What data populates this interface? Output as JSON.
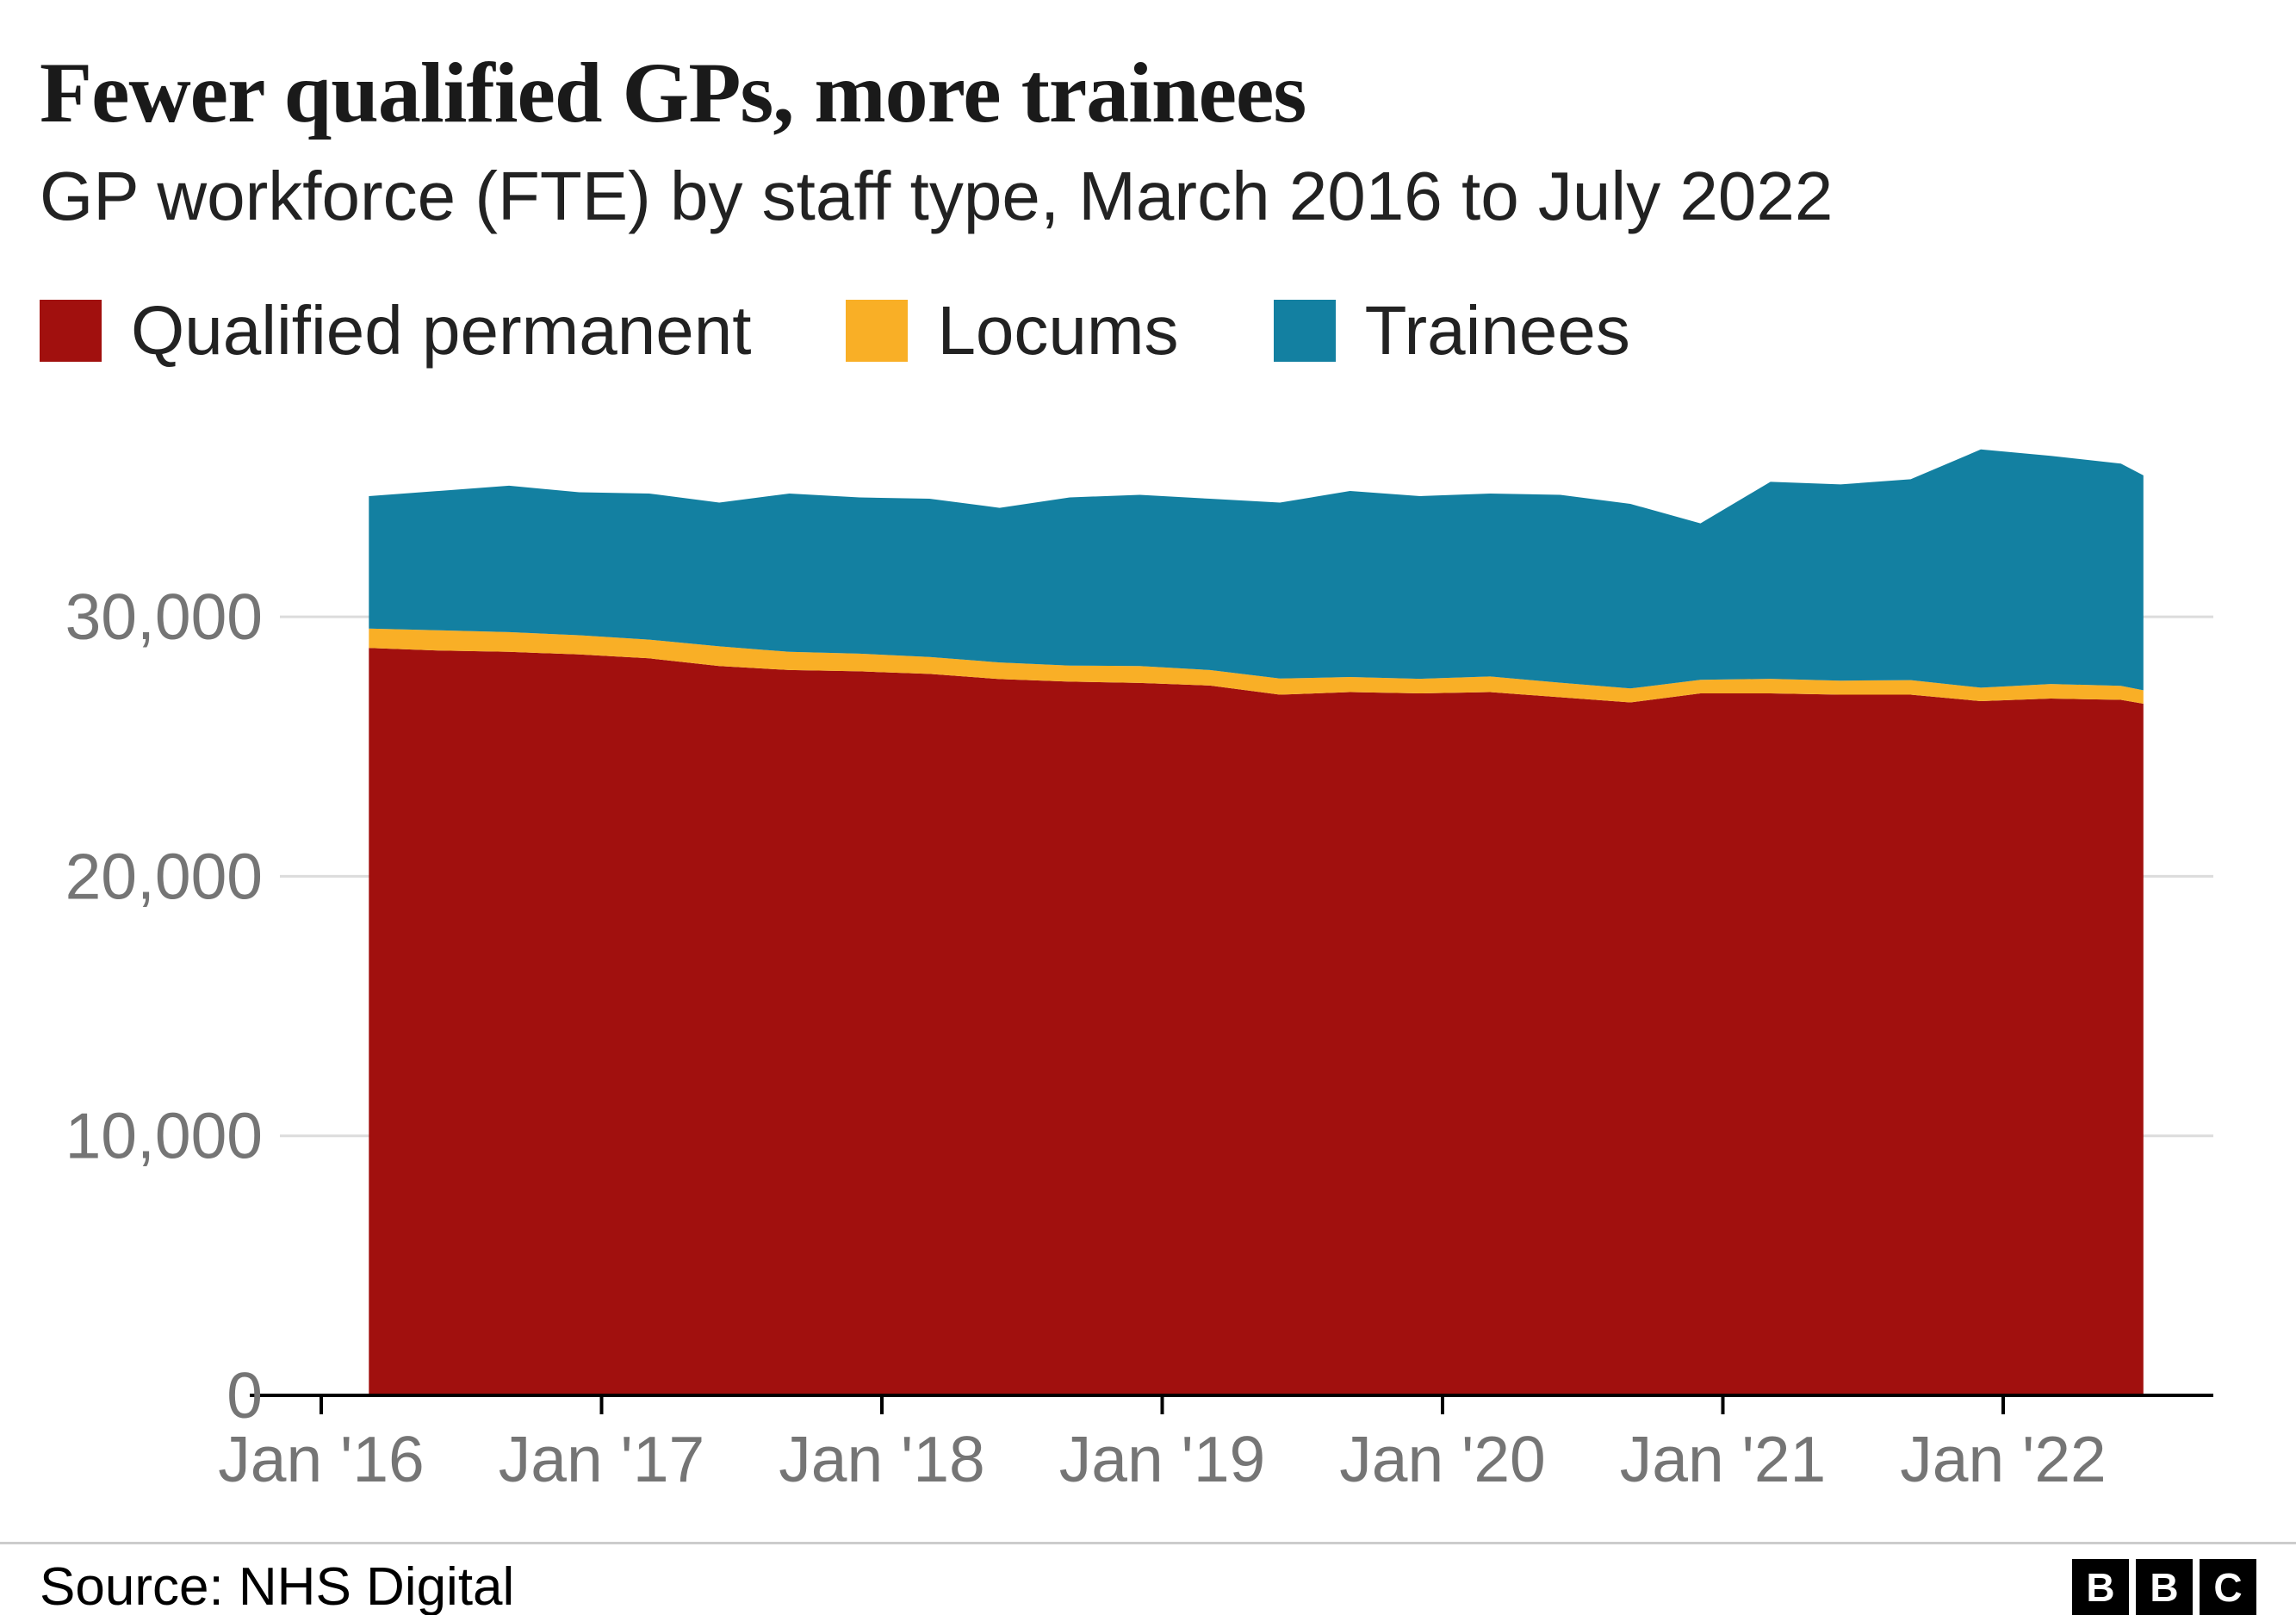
{
  "header": {
    "title": "Fewer qualified GPs, more trainees",
    "subtitle": "GP workforce (FTE) by staff type, March 2016 to July 2022"
  },
  "footer": {
    "source": "Source: NHS Digital",
    "logo_letters": [
      "B",
      "B",
      "C"
    ]
  },
  "chart_data": {
    "type": "area",
    "stacked": true,
    "title": "Fewer qualified GPs, more trainees",
    "subtitle": "GP workforce (FTE) by staff type, March 2016 to July 2022",
    "xlabel": "",
    "ylabel": "",
    "grid": "horizontal",
    "legend_position": "top",
    "ylim": [
      0,
      36600
    ],
    "x_range": [
      2016.17,
      2022.5
    ],
    "x_unit": "decimal_year",
    "point_labels": [
      "Mar '16",
      "Jun '16",
      "Sep '16",
      "Dec '16",
      "Mar '17",
      "Jun '17",
      "Sep '17",
      "Dec '17",
      "Mar '18",
      "Jun '18",
      "Sep '18",
      "Dec '18",
      "Mar '19",
      "Jun '19",
      "Sep '19",
      "Dec '19",
      "Mar '20",
      "Jun '20",
      "Sep '20",
      "Dec '20",
      "Mar '21",
      "Jun '21",
      "Sep '21",
      "Dec '21",
      "Mar '22",
      "Jun '22",
      "Jul '22"
    ],
    "x": [
      2016.17,
      2016.42,
      2016.67,
      2016.92,
      2017.17,
      2017.42,
      2017.67,
      2017.92,
      2018.17,
      2018.42,
      2018.67,
      2018.92,
      2019.17,
      2019.42,
      2019.67,
      2019.92,
      2020.17,
      2020.42,
      2020.67,
      2020.92,
      2021.17,
      2021.42,
      2021.67,
      2021.92,
      2022.17,
      2022.42,
      2022.5
    ],
    "series": [
      {
        "name": "Qualified permanent",
        "color": "#a1100e",
        "values": [
          28800,
          28700,
          28650,
          28550,
          28400,
          28100,
          27950,
          27900,
          27800,
          27600,
          27500,
          27450,
          27350,
          27000,
          27100,
          27050,
          27100,
          26900,
          26700,
          27050,
          27050,
          27000,
          27000,
          26750,
          26850,
          26800,
          26650
        ]
      },
      {
        "name": "Locums",
        "color": "#f9af26",
        "values": [
          750,
          780,
          760,
          740,
          720,
          760,
          700,
          680,
          650,
          640,
          620,
          650,
          600,
          620,
          580,
          560,
          600,
          560,
          540,
          520,
          560,
          540,
          560,
          520,
          560,
          540,
          520
        ]
      },
      {
        "name": "Trainees",
        "color": "#1380a1",
        "values": [
          5100,
          5370,
          5640,
          5510,
          5630,
          5540,
          6100,
          6020,
          6100,
          5960,
          6480,
          6600,
          6600,
          6780,
          7170,
          7040,
          7050,
          7240,
          7110,
          6030,
          7590,
          7560,
          7740,
          9180,
          8790,
          8560,
          8280
        ]
      }
    ],
    "y_ticks": [
      {
        "value": 0,
        "label": "0"
      },
      {
        "value": 10000,
        "label": "10,000"
      },
      {
        "value": 20000,
        "label": "20,000"
      },
      {
        "value": 30000,
        "label": "30,000"
      }
    ],
    "x_ticks": [
      {
        "value": 2016,
        "label": "Jan '16"
      },
      {
        "value": 2017,
        "label": "Jan '17"
      },
      {
        "value": 2018,
        "label": "Jan '18"
      },
      {
        "value": 2019,
        "label": "Jan '19"
      },
      {
        "value": 2020,
        "label": "Jan '20"
      },
      {
        "value": 2021,
        "label": "Jan '21"
      },
      {
        "value": 2022,
        "label": "Jan '22"
      }
    ],
    "colors": {
      "axis_text": "#757575",
      "gridline": "#dcdcdc",
      "baseline": "#000000"
    }
  }
}
